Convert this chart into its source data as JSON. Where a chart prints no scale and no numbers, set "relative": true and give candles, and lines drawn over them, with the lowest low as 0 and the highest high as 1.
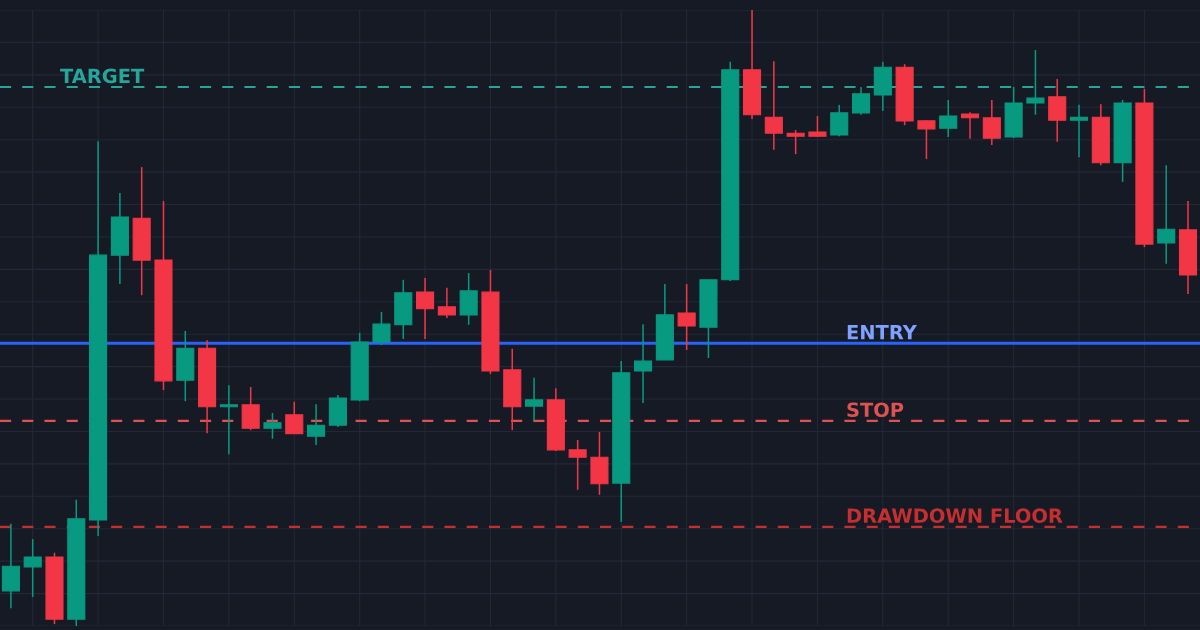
{
  "chart_data": {
    "type": "candlestick",
    "relative": true,
    "grid": true,
    "categories": [
      null,
      null,
      null,
      null,
      null,
      null,
      null,
      null,
      null,
      null,
      null,
      null,
      null,
      null,
      null,
      null,
      null,
      null,
      null,
      null,
      null,
      null,
      null,
      null,
      null,
      null,
      null,
      null,
      null,
      null,
      null,
      null,
      null,
      null,
      null,
      null,
      null,
      null,
      null,
      null,
      null,
      null,
      null,
      null,
      null,
      null,
      null,
      null,
      null,
      null,
      null,
      null,
      null,
      null,
      null
    ],
    "colors": [
      "#089981",
      "#089981",
      "#f23645",
      "#089981",
      "#089981",
      "#089981",
      "#f23645",
      "#f23645",
      "#089981",
      "#f23645",
      "#089981",
      "#f23645",
      "#089981",
      "#f23645",
      "#089981",
      "#089981",
      "#089981",
      "#089981",
      "#089981",
      "#f23645",
      "#f23645",
      "#089981",
      "#f23645",
      "#f23645",
      "#089981",
      "#f23645",
      "#f23645",
      "#f23645",
      "#089981",
      "#089981",
      "#089981",
      "#f23645",
      "#089981",
      "#089981",
      "#f23645",
      "#f23645",
      "#f23645",
      "#f23645",
      "#089981",
      "#089981",
      "#089981",
      "#f23645",
      "#f23645",
      "#089981",
      "#f23645",
      "#f23645",
      "#089981",
      "#089981",
      "#f23645",
      "#089981",
      "#f23645",
      "#089981",
      "#f23645",
      "#089981",
      "#f23645"
    ],
    "ohlc": [
      [
        0.057,
        0.166,
        0.029,
        0.097
      ],
      [
        0.096,
        0.141,
        0.047,
        0.112
      ],
      [
        0.112,
        0.119,
        0.003,
        0.011
      ],
      [
        0.011,
        0.205,
        0.0,
        0.174
      ],
      [
        0.172,
        0.787,
        0.146,
        0.602
      ],
      [
        0.602,
        0.703,
        0.555,
        0.664
      ],
      [
        0.662,
        0.745,
        0.537,
        0.594
      ],
      [
        0.594,
        0.69,
        0.383,
        0.398
      ],
      [
        0.399,
        0.479,
        0.365,
        0.451
      ],
      [
        0.451,
        0.464,
        0.313,
        0.356
      ],
      [
        0.356,
        0.391,
        0.279,
        0.359
      ],
      [
        0.359,
        0.388,
        0.318,
        0.321
      ],
      [
        0.321,
        0.346,
        0.304,
        0.33
      ],
      [
        0.343,
        0.364,
        0.312,
        0.312
      ],
      [
        0.308,
        0.36,
        0.294,
        0.326
      ],
      [
        0.326,
        0.375,
        0.323,
        0.37
      ],
      [
        0.367,
        0.476,
        0.365,
        0.461
      ],
      [
        0.461,
        0.51,
        0.456,
        0.49
      ],
      [
        0.489,
        0.562,
        0.466,
        0.541
      ],
      [
        0.542,
        0.565,
        0.466,
        0.515
      ],
      [
        0.518,
        0.549,
        0.5,
        0.505
      ],
      [
        0.505,
        0.573,
        0.489,
        0.544
      ],
      [
        0.542,
        0.578,
        0.409,
        0.414
      ],
      [
        0.416,
        0.45,
        0.318,
        0.356
      ],
      [
        0.357,
        0.403,
        0.333,
        0.367
      ],
      [
        0.367,
        0.386,
        0.284,
        0.286
      ],
      [
        0.286,
        0.302,
        0.221,
        0.274
      ],
      [
        0.274,
        0.315,
        0.213,
        0.231
      ],
      [
        0.232,
        0.43,
        0.169,
        0.411
      ],
      [
        0.414,
        0.49,
        0.362,
        0.43
      ],
      [
        0.432,
        0.555,
        0.432,
        0.505
      ],
      [
        0.508,
        0.555,
        0.448,
        0.487
      ],
      [
        0.485,
        0.562,
        0.435,
        0.562
      ],
      [
        0.562,
        0.916,
        0.56,
        0.903
      ],
      [
        0.903,
        1.0,
        0.823,
        0.83
      ],
      [
        0.826,
        0.917,
        0.773,
        0.8
      ],
      [
        0.8,
        0.805,
        0.766,
        0.795
      ],
      [
        0.802,
        0.828,
        0.794,
        0.795
      ],
      [
        0.797,
        0.846,
        0.795,
        0.833
      ],
      [
        0.833,
        0.875,
        0.83,
        0.864
      ],
      [
        0.862,
        0.916,
        0.836,
        0.907
      ],
      [
        0.907,
        0.912,
        0.813,
        0.82
      ],
      [
        0.82,
        0.821,
        0.758,
        0.807
      ],
      [
        0.808,
        0.854,
        0.794,
        0.828
      ],
      [
        0.831,
        0.834,
        0.791,
        0.825
      ],
      [
        0.825,
        0.854,
        0.781,
        0.792
      ],
      [
        0.794,
        0.875,
        0.792,
        0.849
      ],
      [
        0.849,
        0.935,
        0.83,
        0.857
      ],
      [
        0.859,
        0.888,
        0.786,
        0.821
      ],
      [
        0.821,
        0.846,
        0.761,
        0.826
      ],
      [
        0.826,
        0.847,
        0.748,
        0.752
      ],
      [
        0.752,
        0.854,
        0.721,
        0.849
      ],
      [
        0.849,
        0.872,
        0.615,
        0.62
      ],
      [
        0.622,
        0.748,
        0.588,
        0.644
      ],
      [
        0.643,
        0.69,
        0.539,
        0.57
      ]
    ],
    "ref_lines": [
      {
        "axis": "y",
        "value": 0.875,
        "label": "TARGET",
        "color": "#26a69a",
        "line_style": "dashed"
      },
      {
        "axis": "y",
        "value": 0.459,
        "label": "ENTRY",
        "color": "#2962ff",
        "line_style": "solid"
      },
      {
        "axis": "y",
        "value": 0.333,
        "label": "STOP",
        "color": "#e05252",
        "line_style": "dashed"
      },
      {
        "axis": "y",
        "value": 0.161,
        "label": "DRAWDOWN FLOOR",
        "color": "#c62f2f",
        "line_style": "dashed"
      }
    ]
  }
}
